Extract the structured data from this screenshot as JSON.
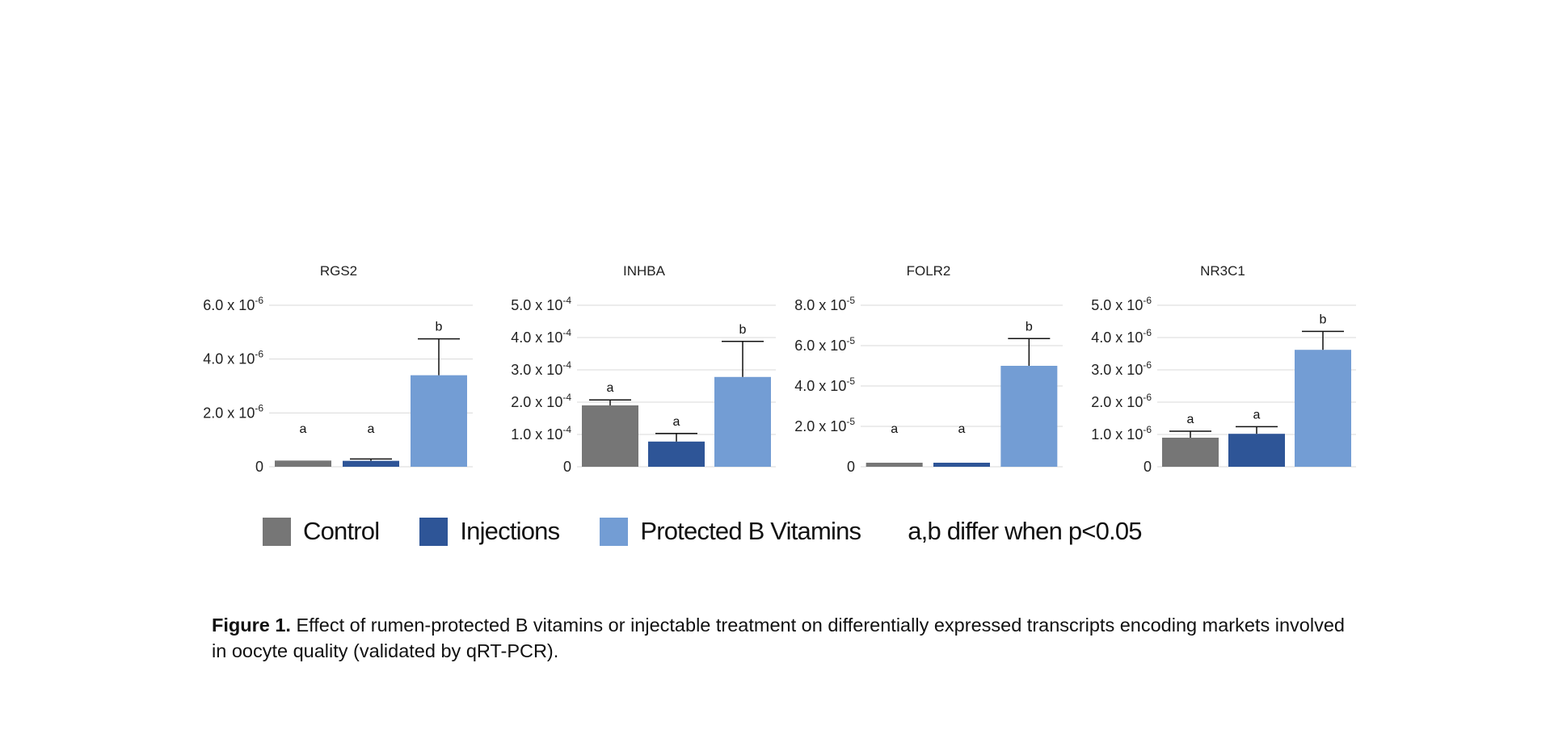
{
  "chart_data": [
    {
      "type": "bar",
      "title": "RGS2",
      "categories": [
        "Control",
        "Injections",
        "Protected B Vitamins"
      ],
      "values": [
        2.3e-07,
        2.2e-07,
        3.4e-06
      ],
      "errors": [
        0,
        7e-08,
        1.35e-06
      ],
      "letters": [
        "a",
        "a",
        "b"
      ],
      "ylim": [
        0,
        6e-06
      ],
      "yticks": [
        0,
        2e-06,
        4e-06,
        6e-06
      ],
      "ytick_labels": [
        {
          "base": "0",
          "exp": ""
        },
        {
          "base": "2.0 x 10",
          "exp": "-6"
        },
        {
          "base": "4.0 x 10",
          "exp": "-6"
        },
        {
          "base": "6.0 x 10",
          "exp": "-6"
        }
      ],
      "grid": true
    },
    {
      "type": "bar",
      "title": "INHBA",
      "categories": [
        "Control",
        "Injections",
        "Protected B Vitamins"
      ],
      "values": [
        0.00019,
        7.8e-05,
        0.000278
      ],
      "errors": [
        1.7e-05,
        2.5e-05,
        0.00011
      ],
      "letters": [
        "a",
        "a",
        "b"
      ],
      "ylim": [
        0,
        0.0005
      ],
      "yticks": [
        0,
        0.0001,
        0.0002,
        0.0003,
        0.0004,
        0.0005
      ],
      "ytick_labels": [
        {
          "base": "0",
          "exp": ""
        },
        {
          "base": "1.0 x 10",
          "exp": "-4"
        },
        {
          "base": "2.0 x 10",
          "exp": "-4"
        },
        {
          "base": "3.0 x 10",
          "exp": "-4"
        },
        {
          "base": "4.0 x 10",
          "exp": "-4"
        },
        {
          "base": "5.0 x 10",
          "exp": "-4"
        }
      ],
      "grid": true
    },
    {
      "type": "bar",
      "title": "FOLR2",
      "categories": [
        "Control",
        "Injections",
        "Protected B Vitamins"
      ],
      "values": [
        2e-06,
        2e-06,
        5e-05
      ],
      "errors": [
        0,
        0,
        1.35e-05
      ],
      "letters": [
        "a",
        "a",
        "b"
      ],
      "ylim": [
        0,
        8e-05
      ],
      "yticks": [
        0,
        2e-05,
        4e-05,
        6e-05,
        8e-05
      ],
      "ytick_labels": [
        {
          "base": "0",
          "exp": ""
        },
        {
          "base": "2.0 x 10",
          "exp": "-5"
        },
        {
          "base": "4.0 x 10",
          "exp": "-5"
        },
        {
          "base": "6.0 x 10",
          "exp": "-5"
        },
        {
          "base": "8.0 x 10",
          "exp": "-5"
        }
      ],
      "grid": true
    },
    {
      "type": "bar",
      "title": "NR3C1",
      "categories": [
        "Control",
        "Injections",
        "Protected B Vitamins"
      ],
      "values": [
        9e-07,
        1.02e-06,
        3.62e-06
      ],
      "errors": [
        2e-07,
        2.2e-07,
        5.7e-07
      ],
      "letters": [
        "a",
        "a",
        "b"
      ],
      "ylim": [
        0,
        5e-06
      ],
      "yticks": [
        0,
        1e-06,
        2e-06,
        3e-06,
        4e-06,
        5e-06
      ],
      "ytick_labels": [
        {
          "base": "0",
          "exp": ""
        },
        {
          "base": "1.0 x 10",
          "exp": "-6"
        },
        {
          "base": "2.0 x 10",
          "exp": "-6"
        },
        {
          "base": "3.0 x 10",
          "exp": "-6"
        },
        {
          "base": "4.0 x 10",
          "exp": "-6"
        },
        {
          "base": "5.0 x 10",
          "exp": "-6"
        }
      ],
      "grid": true
    }
  ],
  "series_colors": {
    "Control": "#767676",
    "Injections": "#2e5597",
    "Protected B Vitamins": "#739dd4"
  },
  "legend": {
    "items": [
      {
        "label": "Control",
        "color": "#767676"
      },
      {
        "label": "Injections",
        "color": "#2e5597"
      },
      {
        "label": "Protected B Vitamins",
        "color": "#739dd4"
      }
    ],
    "note": "a,b differ when p<0.05"
  },
  "caption": {
    "label": "Figure 1.",
    "text": " Effect of rumen-protected B vitamins or injectable treatment on differentially expressed transcripts encoding markets involved in oocyte quality (validated by qRT-PCR)."
  }
}
